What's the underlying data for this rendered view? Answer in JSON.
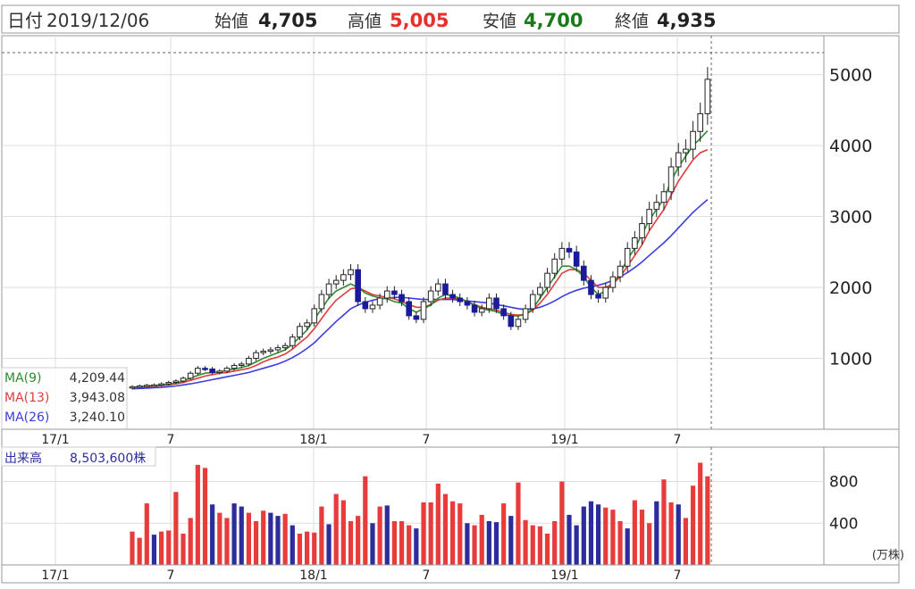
{
  "header": {
    "date_label": "日付",
    "date_value": "2019/12/06",
    "open_label": "始値",
    "open_value": "4,705",
    "high_label": "高値",
    "high_value": "5,005",
    "low_label": "安値",
    "low_value": "4,700",
    "close_label": "終値",
    "close_value": "4,935"
  },
  "legend": {
    "ma9_label": "MA(9)",
    "ma9_value": "4,209.44",
    "ma13_label": "MA(13)",
    "ma13_value": "3,943.08",
    "ma26_label": "MA(26)",
    "ma26_value": "3,240.10"
  },
  "volume_legend": {
    "label": "出来高",
    "value": "8,503,600株"
  },
  "volume_unit": "(万株)",
  "colors": {
    "up_candle": "#ffffff",
    "down_candle": "#1a1a9a",
    "ma9": "#2e8b2e",
    "ma13": "#e03c3c",
    "ma26": "#3c3ce0",
    "high": "#e8302a",
    "low": "#1a7a1a",
    "vol_up": "#e83c3c",
    "vol_down": "#2c2c9c"
  },
  "chart_data": [
    {
      "type": "candlestick",
      "yticks": [
        1000,
        2000,
        3000,
        4000,
        5000
      ],
      "ylim": [
        0,
        5550
      ],
      "xticks": [
        "17/1",
        "7",
        "18/1",
        "7",
        "19/1",
        "7"
      ],
      "x_start": "2016-10",
      "x_end": "2019-12",
      "grid": true,
      "closes": [
        600,
        610,
        620,
        625,
        640,
        660,
        680,
        720,
        790,
        860,
        850,
        800,
        820,
        860,
        900,
        920,
        1000,
        1080,
        1100,
        1120,
        1150,
        1180,
        1300,
        1450,
        1500,
        1700,
        1900,
        2050,
        2100,
        2180,
        2250,
        1800,
        1700,
        1750,
        1850,
        1950,
        1900,
        1800,
        1600,
        1550,
        1800,
        1950,
        2050,
        1900,
        1850,
        1800,
        1750,
        1650,
        1700,
        1850,
        1700,
        1600,
        1450,
        1550,
        1700,
        1900,
        2000,
        2200,
        2400,
        2550,
        2500,
        2300,
        2100,
        1900,
        1850,
        2000,
        2150,
        2300,
        2550,
        2700,
        2900,
        3100,
        3200,
        3350,
        3700,
        3900,
        3950,
        4200,
        4450,
        4935
      ],
      "ma9_values": [
        590,
        600,
        610,
        615,
        625,
        635,
        650,
        680,
        720,
        760,
        790,
        800,
        810,
        830,
        850,
        870,
        900,
        950,
        1000,
        1040,
        1080,
        1120,
        1200,
        1300,
        1400,
        1550,
        1700,
        1850,
        1950,
        2000,
        2050,
        2000,
        1920,
        1880,
        1850,
        1840,
        1800,
        1780,
        1700,
        1650,
        1700,
        1750,
        1850,
        1900,
        1880,
        1850,
        1800,
        1750,
        1700,
        1680,
        1660,
        1620,
        1600,
        1600,
        1620,
        1700,
        1850,
        2000,
        2150,
        2300,
        2300,
        2250,
        2150,
        2000,
        1900,
        1950,
        2050,
        2200,
        2400,
        2550,
        2750,
        2950,
        3100,
        3250,
        3500,
        3700,
        3850,
        4000,
        4100,
        4209
      ],
      "ma13_values": [
        580,
        590,
        600,
        605,
        615,
        625,
        640,
        660,
        690,
        720,
        750,
        770,
        790,
        800,
        820,
        840,
        860,
        900,
        950,
        990,
        1020,
        1060,
        1130,
        1220,
        1300,
        1420,
        1560,
        1700,
        1820,
        1900,
        1980,
        2000,
        1950,
        1900,
        1880,
        1860,
        1840,
        1800,
        1760,
        1720,
        1720,
        1760,
        1820,
        1850,
        1850,
        1830,
        1800,
        1760,
        1720,
        1700,
        1680,
        1650,
        1620,
        1610,
        1620,
        1680,
        1780,
        1900,
        2050,
        2200,
        2250,
        2250,
        2200,
        2100,
        2000,
        2000,
        2050,
        2150,
        2300,
        2450,
        2600,
        2800,
        2950,
        3100,
        3300,
        3500,
        3650,
        3800,
        3900,
        3943
      ],
      "ma26_values": [
        570,
        575,
        580,
        585,
        590,
        600,
        610,
        625,
        640,
        660,
        680,
        700,
        720,
        740,
        760,
        780,
        800,
        830,
        860,
        890,
        920,
        960,
        1010,
        1070,
        1140,
        1220,
        1320,
        1420,
        1520,
        1610,
        1700,
        1750,
        1790,
        1820,
        1840,
        1850,
        1860,
        1860,
        1850,
        1840,
        1830,
        1830,
        1830,
        1830,
        1830,
        1820,
        1810,
        1800,
        1790,
        1780,
        1760,
        1740,
        1720,
        1700,
        1690,
        1700,
        1720,
        1760,
        1810,
        1870,
        1920,
        1960,
        1990,
        2010,
        2030,
        2060,
        2100,
        2150,
        2210,
        2280,
        2360,
        2450,
        2540,
        2630,
        2730,
        2840,
        2950,
        3060,
        3150,
        3240
      ]
    },
    {
      "type": "bar",
      "yticks": [
        400,
        800
      ],
      "ylim": [
        0,
        1130
      ],
      "xticks": [
        "17/1",
        "7",
        "18/1",
        "7",
        "19/1",
        "7"
      ],
      "values": [
        320,
        260,
        590,
        290,
        320,
        330,
        700,
        300,
        450,
        960,
        930,
        580,
        500,
        450,
        590,
        560,
        500,
        420,
        520,
        500,
        470,
        490,
        380,
        300,
        320,
        310,
        560,
        390,
        680,
        620,
        420,
        470,
        850,
        400,
        560,
        570,
        420,
        420,
        380,
        350,
        600,
        600,
        780,
        680,
        610,
        590,
        400,
        380,
        480,
        420,
        410,
        590,
        470,
        790,
        430,
        380,
        370,
        300,
        420,
        800,
        480,
        380,
        560,
        610,
        580,
        550,
        530,
        420,
        350,
        620,
        530,
        400,
        610,
        820,
        600,
        580,
        450,
        760,
        980,
        850
      ],
      "up": [
        true,
        true,
        true,
        false,
        true,
        true,
        true,
        true,
        true,
        true,
        true,
        false,
        true,
        true,
        false,
        false,
        true,
        true,
        true,
        false,
        false,
        true,
        false,
        true,
        true,
        true,
        true,
        false,
        true,
        true,
        true,
        true,
        true,
        false,
        true,
        false,
        true,
        true,
        true,
        false,
        true,
        true,
        true,
        true,
        true,
        true,
        false,
        true,
        true,
        false,
        false,
        true,
        false,
        true,
        true,
        true,
        true,
        true,
        true,
        true,
        false,
        false,
        false,
        false,
        false,
        true,
        true,
        true,
        false,
        true,
        true,
        true,
        false,
        true,
        true,
        false,
        true,
        true,
        true,
        true
      ]
    }
  ]
}
